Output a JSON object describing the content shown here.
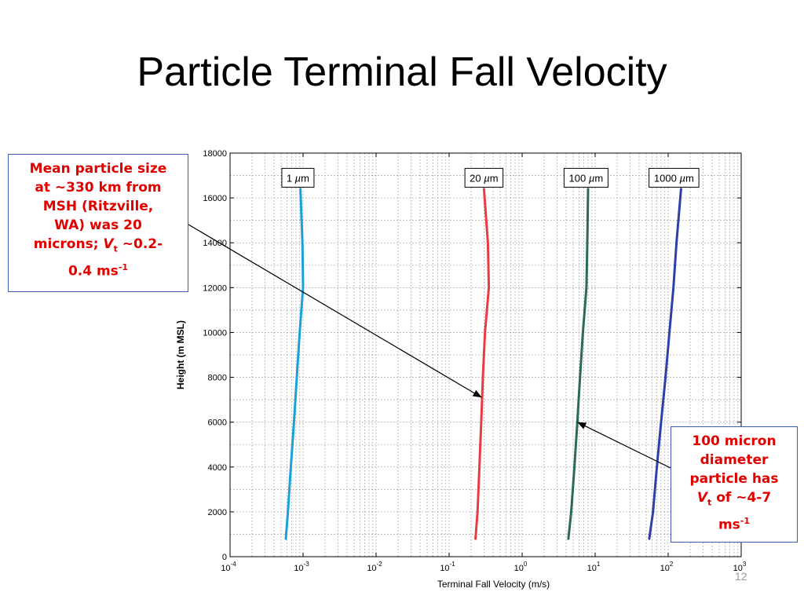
{
  "slide": {
    "title": "Particle Terminal Fall Velocity",
    "number": "12"
  },
  "callouts": {
    "left": {
      "line1": "Mean particle size",
      "line2": "at ~330 km from",
      "line3": "MSH (Ritzville,",
      "line4": "WA) was 20",
      "line5a": "microns; ",
      "line5v": "V",
      "line5t": "t",
      "line5b": " ~0.2-",
      "line6a": "0.4 ms",
      "line6sup": "-1"
    },
    "right": {
      "line1": "100 micron",
      "line2": "diameter",
      "line3": "particle has",
      "line4v": "V",
      "line4t": "t",
      "line4b": " of ~4-7",
      "line5a": "ms",
      "line5sup": "-1"
    }
  },
  "colors": {
    "callout_text": "#e00000",
    "callout_border": "#3a5fb0"
  },
  "chart_data": {
    "type": "line",
    "xlabel": "Terminal Fall Velocity (m/s)",
    "ylabel": "Height (m MSL)",
    "x_scale": "log",
    "xlim": [
      0.0001,
      1000
    ],
    "ylim": [
      0,
      18000
    ],
    "grid": true,
    "x_tick_labels": [
      {
        "base": "10",
        "exp": "-4",
        "value": 0.0001
      },
      {
        "base": "10",
        "exp": "-3",
        "value": 0.001
      },
      {
        "base": "10",
        "exp": "-2",
        "value": 0.01
      },
      {
        "base": "10",
        "exp": "-1",
        "value": 0.1
      },
      {
        "base": "10",
        "exp": "0",
        "value": 1
      },
      {
        "base": "10",
        "exp": "1",
        "value": 10
      },
      {
        "base": "10",
        "exp": "2",
        "value": 100
      },
      {
        "base": "10",
        "exp": "3",
        "value": 1000
      }
    ],
    "y_ticks": [
      0,
      2000,
      4000,
      6000,
      8000,
      10000,
      12000,
      14000,
      16000,
      18000
    ],
    "y_tick_labels": [
      "0",
      "2000",
      "4000",
      "6000",
      "8000",
      "10000",
      "12000",
      "14000",
      "16000",
      "18000"
    ],
    "series": [
      {
        "name": "1 µm",
        "color": "#1ba1d6",
        "points": [
          [
            0.00058,
            800
          ],
          [
            0.00062,
            2000
          ],
          [
            0.00068,
            4000
          ],
          [
            0.00075,
            6000
          ],
          [
            0.00082,
            8000
          ],
          [
            0.0009,
            10000
          ],
          [
            0.001,
            12000
          ],
          [
            0.00098,
            14000
          ],
          [
            0.00092,
            16400
          ]
        ]
      },
      {
        "name": "20 µm",
        "color": "#e83c45",
        "points": [
          [
            0.23,
            800
          ],
          [
            0.245,
            2000
          ],
          [
            0.26,
            4000
          ],
          [
            0.275,
            6000
          ],
          [
            0.29,
            8000
          ],
          [
            0.31,
            10000
          ],
          [
            0.35,
            12000
          ],
          [
            0.34,
            14000
          ],
          [
            0.3,
            16400
          ]
        ]
      },
      {
        "name": "100 µm",
        "color": "#2c6a56",
        "points": [
          [
            4.3,
            800
          ],
          [
            4.7,
            2000
          ],
          [
            5.2,
            4000
          ],
          [
            5.7,
            6000
          ],
          [
            6.2,
            8000
          ],
          [
            6.8,
            10000
          ],
          [
            7.6,
            12000
          ],
          [
            7.8,
            14000
          ],
          [
            8.0,
            16400
          ]
        ]
      },
      {
        "name": "1000 µm",
        "color": "#2e3fa8",
        "points": [
          [
            55,
            800
          ],
          [
            62,
            2000
          ],
          [
            70,
            4000
          ],
          [
            80,
            6000
          ],
          [
            92,
            8000
          ],
          [
            104,
            10000
          ],
          [
            118,
            12000
          ],
          [
            130,
            14000
          ],
          [
            150,
            16400
          ]
        ]
      }
    ],
    "annotations": [
      {
        "label": "1 µm",
        "label_base": "1 ",
        "label_mu": "µ",
        "label_unit": "m",
        "center_x": 0.00085,
        "y": 16900
      },
      {
        "label": "20 µm",
        "label_base": "20 ",
        "label_mu": "µ",
        "label_unit": "m",
        "center_x": 0.3,
        "y": 16900
      },
      {
        "label": "100 µm",
        "label_base": "100 ",
        "label_mu": "µ",
        "label_unit": "m",
        "center_x": 7.5,
        "y": 16900
      },
      {
        "label": "1000 µm",
        "label_base": "1000 ",
        "label_mu": "µ",
        "label_unit": "m",
        "center_x": 120,
        "y": 16900
      }
    ],
    "arrows": [
      {
        "from": "callout-left",
        "to_x": 0.28,
        "to_y": 7100
      },
      {
        "from": "callout-right",
        "to_x": 5.7,
        "to_y": 6000
      }
    ]
  }
}
